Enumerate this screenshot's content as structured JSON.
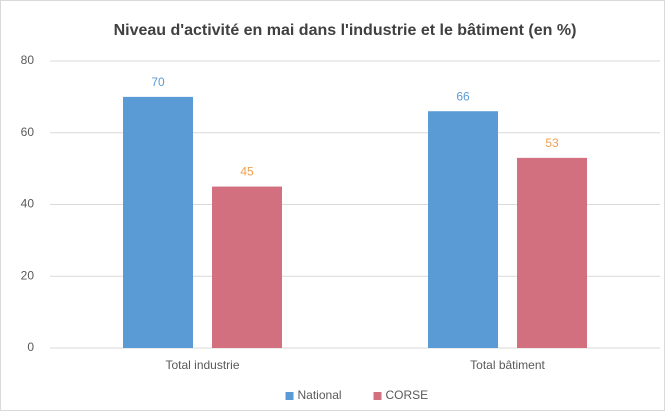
{
  "chart_data": {
    "type": "bar",
    "title": "Niveau d'activité en mai dans l'industrie et le bâtiment (en %)",
    "categories": [
      "Total industrie",
      "Total bâtiment"
    ],
    "series": [
      {
        "name": "National",
        "color": "#5b9bd5",
        "label_color": "#5b9bd5",
        "values": [
          70,
          66
        ]
      },
      {
        "name": "CORSE",
        "color": "#d2707f",
        "label_color": "#f0a04b",
        "values": [
          45,
          53
        ]
      }
    ],
    "ylim": [
      0,
      80
    ],
    "yticks": [
      0,
      20,
      40,
      60,
      80
    ],
    "grid": true,
    "legend": "bottom"
  }
}
